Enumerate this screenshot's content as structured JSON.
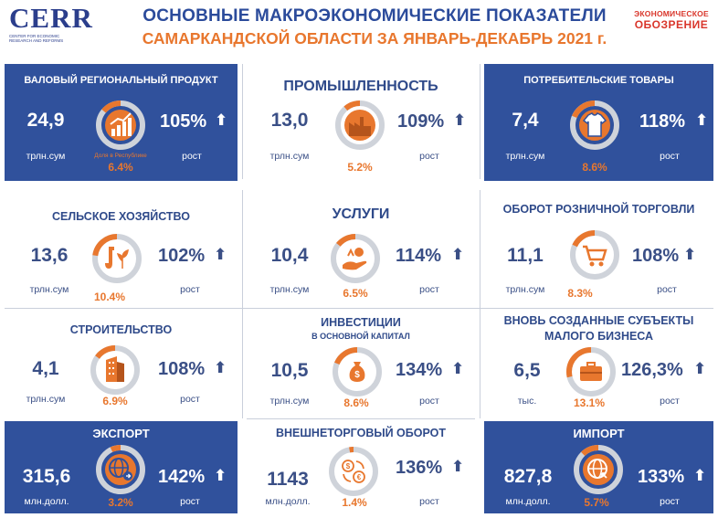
{
  "header": {
    "logo": "CERR",
    "logo_sub": "CENTER FOR ECONOMIC RESEARCH AND REFORMS",
    "title_line1": "ОСНОВНЫЕ МАКРОЭКОНОМИЧЕСКИЕ ПОКАЗАТЕЛИ",
    "title_line2": "САМАРКАНДСКОЙ ОБЛАСТИ ЗА ЯНВАРЬ-ДЕКАБРЬ 2021 г.",
    "brand_line1": "ЭКОНОМИЧЕСКОЕ",
    "brand_line2": "ОБОЗРЕНИЕ"
  },
  "growth_label": "рост",
  "arrow": "⬆",
  "colors": {
    "blue": "#30519c",
    "orange": "#e8772e",
    "ring_gray": "#cfd3da",
    "brand_red": "#d9362b"
  },
  "cards": {
    "grp": {
      "title": "ВАЛОВЫЙ РЕГИОНАЛЬНЫЙ ПРОДУКТ",
      "value": "24,9",
      "unit": "трлн.сум",
      "growth": "105%",
      "share": "6.4%",
      "share_note": "Доля в Республике",
      "share_fraction": 0.064,
      "icon": "growth-chart-icon"
    },
    "industry": {
      "title": "ПРОМЫШЛЕННОСТЬ",
      "value": "13,0",
      "unit": "трлн.сум",
      "growth": "109%",
      "share": "5.2%",
      "share_fraction": 0.052,
      "icon": "factory-icon"
    },
    "consumer": {
      "title": "ПОТРЕБИТЕЛЬСКИЕ ТОВАРЫ",
      "value": "7,4",
      "unit": "трлн.сум",
      "growth": "118%",
      "share": "8.6%",
      "share_fraction": 0.086,
      "icon": "tshirt-icon"
    },
    "agriculture": {
      "title": "СЕЛЬСКОЕ ХОЗЯЙСТВО",
      "value": "13,6",
      "unit": "трлн.сум",
      "growth": "102%",
      "share": "10.4%",
      "share_fraction": 0.104,
      "icon": "shovel-plant-icon"
    },
    "services": {
      "title": "УСЛУГИ",
      "value": "10,4",
      "unit": "трлн.сум",
      "growth": "114%",
      "share": "6.5%",
      "share_fraction": 0.065,
      "icon": "hand-service-icon"
    },
    "retail": {
      "title": "ОБОРОТ РОЗНИЧНОЙ ТОРГОВЛИ",
      "value": "11,1",
      "unit": "трлн.сум",
      "growth": "108%",
      "share": "8.3%",
      "share_fraction": 0.083,
      "icon": "shopping-cart-icon"
    },
    "construction": {
      "title": "СТРОИТЕЛЬСТВО",
      "value": "4,1",
      "unit": "трлн.сум",
      "growth": "108%",
      "share": "6.9%",
      "share_fraction": 0.069,
      "icon": "building-icon"
    },
    "investment": {
      "title": "ИНВЕСТИЦИИ",
      "subtitle": "В ОСНОВНОЙ КАПИТАЛ",
      "value": "10,5",
      "unit": "трлн.сум",
      "growth": "134%",
      "share": "8.6%",
      "share_fraction": 0.086,
      "icon": "money-bag-icon"
    },
    "small_business": {
      "title_line1": "ВНОВЬ СОЗДАННЫЕ СУБЪЕКТЫ",
      "title_line2": "МАЛОГО БИЗНЕСА",
      "value": "6,5",
      "unit": "тыс.",
      "growth": "126,3%",
      "share": "13.1%",
      "share_fraction": 0.131,
      "icon": "briefcase-icon"
    },
    "export": {
      "title": "ЭКСПОРТ",
      "value": "315,6",
      "unit": "млн.долл.",
      "growth": "142%",
      "share": "3.2%",
      "share_fraction": 0.032,
      "icon": "globe-export-icon"
    },
    "trade": {
      "title": "ВНЕШНЕТОРГОВЫЙ ОБОРОТ",
      "value": "1143",
      "unit": "млн.долл.",
      "growth": "136%",
      "share": "1.4%",
      "share_fraction": 0.014,
      "icon": "currency-exchange-icon"
    },
    "import": {
      "title": "ИМПОРТ",
      "value": "827,8",
      "unit": "млн.долл.",
      "growth": "133%",
      "share": "5.7%",
      "share_fraction": 0.057,
      "icon": "globe-import-icon"
    }
  }
}
